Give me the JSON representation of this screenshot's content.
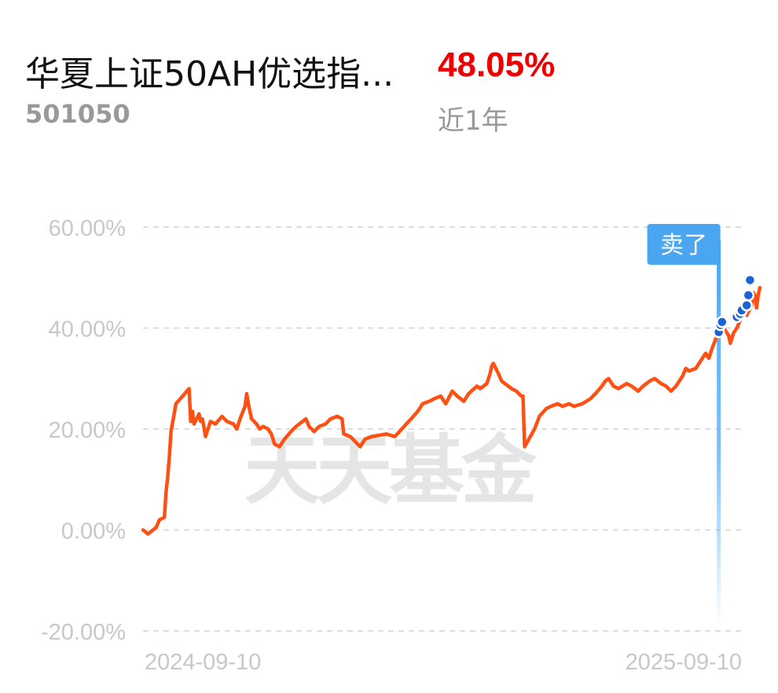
{
  "header": {
    "fund_name": "华夏上证50AH优选指...",
    "fund_code": "501050",
    "return_value": "48.05%",
    "return_period": "近1年"
  },
  "watermark": "天天基金",
  "colors": {
    "line": "#ff5014",
    "return_positive": "#ee0000",
    "marker_sell": "#4aa6f0",
    "trade_dot": "#1b62d6",
    "grid": "#dddddd",
    "axis_text": "#c8c8c8"
  },
  "chart_data": {
    "type": "line",
    "y_tick_labels": [
      "60.00%",
      "40.00%",
      "20.00%",
      "0.00%",
      "-20.00%"
    ],
    "y_ticks": [
      60,
      40,
      20,
      0,
      -20
    ],
    "ylim": [
      -20,
      60
    ],
    "x_tick_labels": [
      "2024-09-10",
      "2025-09-10"
    ],
    "xlim": [
      "2024-09-10",
      "2025-09-10"
    ],
    "grid": "horizontal-dashed",
    "series": [
      {
        "points": [
          [
            "2024-09-10",
            0.0
          ],
          [
            "2024-09-13",
            -0.8
          ],
          [
            "2024-09-18",
            0.5
          ],
          [
            "2024-09-20",
            2.0
          ],
          [
            "2024-09-23",
            2.5
          ],
          [
            "2024-09-24",
            7.5
          ],
          [
            "2024-09-25",
            10.5
          ],
          [
            "2024-09-26",
            14.5
          ],
          [
            "2024-09-27",
            19.5
          ],
          [
            "2024-09-30",
            25.0
          ],
          [
            "2024-10-08",
            28.0
          ],
          [
            "2024-10-09",
            21.5
          ],
          [
            "2024-10-10",
            23.5
          ],
          [
            "2024-10-11",
            21.0
          ],
          [
            "2024-10-14",
            23.0
          ],
          [
            "2024-10-15",
            21.5
          ],
          [
            "2024-10-16",
            22.0
          ],
          [
            "2024-10-17",
            20.5
          ],
          [
            "2024-10-18",
            18.5
          ],
          [
            "2024-10-21",
            21.5
          ],
          [
            "2024-10-24",
            21.0
          ],
          [
            "2024-10-28",
            22.5
          ],
          [
            "2024-10-31",
            21.5
          ],
          [
            "2024-11-04",
            21.0
          ],
          [
            "2024-11-06",
            20.0
          ],
          [
            "2024-11-08",
            22.0
          ],
          [
            "2024-11-11",
            24.5
          ],
          [
            "2024-11-12",
            27.0
          ],
          [
            "2024-11-13",
            25.0
          ],
          [
            "2024-11-15",
            22.0
          ],
          [
            "2024-11-18",
            21.0
          ],
          [
            "2024-11-20",
            20.0
          ],
          [
            "2024-11-22",
            20.5
          ],
          [
            "2024-11-25",
            20.0
          ],
          [
            "2024-11-27",
            19.0
          ],
          [
            "2024-11-29",
            17.0
          ],
          [
            "2024-12-02",
            16.5
          ],
          [
            "2024-12-05",
            18.0
          ],
          [
            "2024-12-09",
            19.5
          ],
          [
            "2024-12-12",
            20.5
          ],
          [
            "2024-12-16",
            21.5
          ],
          [
            "2024-12-18",
            22.0
          ],
          [
            "2024-12-20",
            20.5
          ],
          [
            "2024-12-23",
            19.5
          ],
          [
            "2024-12-26",
            20.5
          ],
          [
            "2024-12-30",
            21.0
          ],
          [
            "2025-01-02",
            22.0
          ],
          [
            "2025-01-06",
            22.5
          ],
          [
            "2025-01-09",
            22.0
          ],
          [
            "2025-01-10",
            19.0
          ],
          [
            "2025-01-14",
            18.5
          ],
          [
            "2025-01-17",
            17.5
          ],
          [
            "2025-01-20",
            16.5
          ],
          [
            "2025-01-23",
            18.0
          ],
          [
            "2025-01-27",
            18.5
          ],
          [
            "2025-02-05",
            19.0
          ],
          [
            "2025-02-10",
            18.5
          ],
          [
            "2025-02-13",
            19.5
          ],
          [
            "2025-02-17",
            21.0
          ],
          [
            "2025-02-20",
            22.0
          ],
          [
            "2025-02-24",
            23.5
          ],
          [
            "2025-02-27",
            25.0
          ],
          [
            "2025-03-03",
            25.5
          ],
          [
            "2025-03-06",
            26.0
          ],
          [
            "2025-03-10",
            26.5
          ],
          [
            "2025-03-13",
            25.0
          ],
          [
            "2025-03-17",
            27.5
          ],
          [
            "2025-03-20",
            26.5
          ],
          [
            "2025-03-24",
            25.5
          ],
          [
            "2025-03-27",
            27.0
          ],
          [
            "2025-04-01",
            28.5
          ],
          [
            "2025-04-03",
            28.0
          ],
          [
            "2025-04-07",
            29.0
          ],
          [
            "2025-04-09",
            31.0
          ],
          [
            "2025-04-10",
            32.5
          ],
          [
            "2025-04-11",
            33.0
          ],
          [
            "2025-04-14",
            31.0
          ],
          [
            "2025-04-16",
            29.5
          ],
          [
            "2025-04-18",
            29.0
          ],
          [
            "2025-04-22",
            28.0
          ],
          [
            "2025-04-25",
            27.5
          ],
          [
            "2025-04-28",
            26.5
          ],
          [
            "2025-04-29",
            26.5
          ],
          [
            "2025-04-30",
            16.5
          ],
          [
            "2025-05-06",
            20.0
          ],
          [
            "2025-05-09",
            22.5
          ],
          [
            "2025-05-13",
            24.0
          ],
          [
            "2025-05-16",
            24.5
          ],
          [
            "2025-05-20",
            25.0
          ],
          [
            "2025-05-23",
            24.5
          ],
          [
            "2025-05-27",
            25.0
          ],
          [
            "2025-05-30",
            24.5
          ],
          [
            "2025-06-04",
            25.0
          ],
          [
            "2025-06-09",
            26.0
          ],
          [
            "2025-06-12",
            27.0
          ],
          [
            "2025-06-16",
            28.5
          ],
          [
            "2025-06-18",
            29.5
          ],
          [
            "2025-06-20",
            30.0
          ],
          [
            "2025-06-23",
            28.5
          ],
          [
            "2025-06-26",
            28.0
          ],
          [
            "2025-07-01",
            29.0
          ],
          [
            "2025-07-04",
            28.5
          ],
          [
            "2025-07-08",
            27.5
          ],
          [
            "2025-07-11",
            28.5
          ],
          [
            "2025-07-15",
            29.5
          ],
          [
            "2025-07-18",
            30.0
          ],
          [
            "2025-07-22",
            29.0
          ],
          [
            "2025-07-25",
            28.5
          ],
          [
            "2025-07-28",
            27.5
          ],
          [
            "2025-07-31",
            28.5
          ],
          [
            "2025-08-04",
            30.5
          ],
          [
            "2025-08-06",
            32.0
          ],
          [
            "2025-08-08",
            31.5
          ],
          [
            "2025-08-12",
            32.0
          ],
          [
            "2025-08-15",
            33.5
          ],
          [
            "2025-08-18",
            35.0
          ],
          [
            "2025-08-20",
            34.0
          ],
          [
            "2025-08-22",
            36.0
          ],
          [
            "2025-08-25",
            38.5
          ],
          [
            "2025-08-26",
            39.5
          ],
          [
            "2025-08-27",
            40.5
          ],
          [
            "2025-08-28",
            41.0
          ],
          [
            "2025-08-29",
            40.0
          ],
          [
            "2025-09-01",
            38.5
          ],
          [
            "2025-09-02",
            37.0
          ],
          [
            "2025-09-03",
            38.0
          ],
          [
            "2025-09-04",
            39.0
          ],
          [
            "2025-09-05",
            39.5
          ],
          [
            "2025-09-06",
            40.0
          ],
          [
            "2025-09-08",
            41.5
          ],
          [
            "2025-09-09",
            42.5
          ],
          [
            "2025-09-10",
            43.0
          ],
          [
            "2025-09-12",
            42.5
          ],
          [
            "2025-09-15",
            44.5
          ],
          [
            "2025-09-16",
            47.0
          ],
          [
            "2025-09-17",
            46.5
          ],
          [
            "2025-09-18",
            44.0
          ],
          [
            "2025-09-19",
            46.5
          ],
          [
            "2025-09-20",
            48.0
          ]
        ]
      }
    ],
    "sell_marker": {
      "label": "卖了",
      "date": "2025-08-26"
    },
    "trade_points": [
      [
        "2025-08-26",
        39.2
      ],
      [
        "2025-08-27",
        40.6
      ],
      [
        "2025-08-28",
        41.2
      ],
      [
        "2025-09-06",
        42.2
      ],
      [
        "2025-09-08",
        42.8
      ],
      [
        "2025-09-09",
        43.5
      ],
      [
        "2025-09-12",
        44.5
      ],
      [
        "2025-09-13",
        46.5
      ],
      [
        "2025-09-14",
        49.5
      ]
    ]
  }
}
